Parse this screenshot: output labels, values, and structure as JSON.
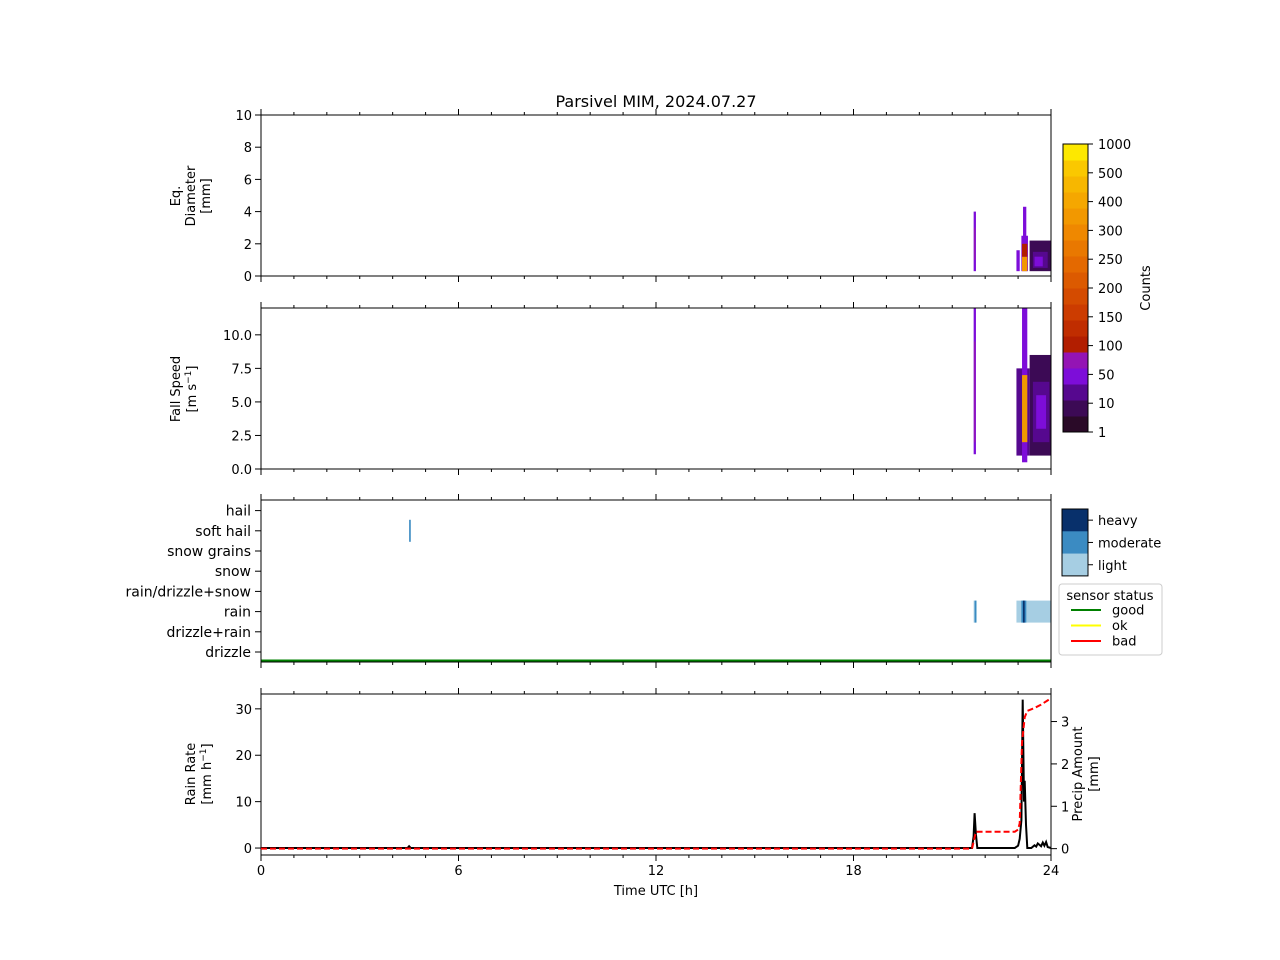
{
  "title": "Parsivel MIM, 2024.07.27",
  "colors": {
    "counts_scale": [
      "#2a0a28",
      "#3c0a55",
      "#56088f",
      "#7d0dd9",
      "#9414b4",
      "#b21e00",
      "#c02d00",
      "#cc3c00",
      "#d44b00",
      "#dc5a00",
      "#e46900",
      "#e97800",
      "#ef8800",
      "#f29800",
      "#f5a700",
      "#f7b700",
      "#fac800",
      "#fde800"
    ],
    "intensity": {
      "light": "#a6cee3",
      "moderate": "#3b8bc2",
      "heavy": "#08306b"
    },
    "status": {
      "good": "#008000",
      "ok": "#ffff00",
      "bad": "#ff0000"
    },
    "rain_rate_line": "#000000",
    "precip_line": "#ff0000"
  },
  "chart_data": [
    {
      "type": "heatmap",
      "panel": "diameter",
      "ylabel_lines": [
        "Eq.",
        "Diameter",
        "[mm]"
      ],
      "ylim": [
        0,
        10
      ],
      "yticks": [
        0,
        2,
        4,
        6,
        8,
        10
      ],
      "xlim": [
        0,
        24
      ],
      "xtick_labels": [
        "0",
        "6",
        "12",
        "18",
        "24"
      ],
      "cells": [
        {
          "t0": 21.65,
          "t1": 21.72,
          "v0": 0.3,
          "v1": 4.0,
          "level": 3
        },
        {
          "t0": 21.66,
          "t1": 21.7,
          "v0": 1.0,
          "v1": 3.0,
          "level": 4
        },
        {
          "t0": 22.95,
          "t1": 23.05,
          "v0": 0.3,
          "v1": 1.6,
          "level": 3
        },
        {
          "t0": 23.1,
          "t1": 23.3,
          "v0": 0.3,
          "v1": 2.5,
          "level": 3
        },
        {
          "t0": 23.15,
          "t1": 23.25,
          "v0": 0.4,
          "v1": 4.3,
          "level": 3
        },
        {
          "t0": 23.12,
          "t1": 23.28,
          "v0": 0.3,
          "v1": 1.2,
          "level": 13
        },
        {
          "t0": 23.12,
          "t1": 23.28,
          "v0": 1.2,
          "v1": 2.0,
          "level": 5
        },
        {
          "t0": 23.35,
          "t1": 24.0,
          "v0": 0.3,
          "v1": 2.2,
          "level": 1
        },
        {
          "t0": 23.45,
          "t1": 23.9,
          "v0": 0.5,
          "v1": 1.5,
          "level": 2
        },
        {
          "t0": 23.5,
          "t1": 23.75,
          "v0": 0.6,
          "v1": 1.2,
          "level": 3
        }
      ]
    },
    {
      "type": "heatmap",
      "panel": "fall-speed",
      "ylabel_lines": [
        "Fall Speed",
        "[m s",
        "−1",
        "]"
      ],
      "ylim": [
        0,
        12
      ],
      "yticks": [
        0.0,
        2.5,
        5.0,
        7.5,
        10.0
      ],
      "ytick_labels": [
        "0.0",
        "2.5",
        "5.0",
        "7.5",
        "10.0"
      ],
      "xlim": [
        0,
        24
      ],
      "cells": [
        {
          "t0": 21.65,
          "t1": 21.72,
          "v0": 1.1,
          "v1": 12.0,
          "level": 3
        },
        {
          "t0": 21.66,
          "t1": 21.7,
          "v0": 2.0,
          "v1": 9.5,
          "level": 4
        },
        {
          "t0": 22.95,
          "t1": 23.35,
          "v0": 1.0,
          "v1": 7.5,
          "level": 2
        },
        {
          "t0": 23.12,
          "t1": 23.28,
          "v0": 0.5,
          "v1": 12.0,
          "level": 3
        },
        {
          "t0": 23.12,
          "t1": 23.28,
          "v0": 2.0,
          "v1": 7.0,
          "level": 13
        },
        {
          "t0": 23.35,
          "t1": 24.0,
          "v0": 1.0,
          "v1": 8.5,
          "level": 1
        },
        {
          "t0": 23.45,
          "t1": 23.95,
          "v0": 2.0,
          "v1": 6.5,
          "level": 2
        },
        {
          "t0": 23.55,
          "t1": 23.85,
          "v0": 3.0,
          "v1": 5.5,
          "level": 3
        }
      ]
    },
    {
      "type": "heatmap",
      "panel": "precip-type",
      "categories": [
        "drizzle",
        "drizzle+rain",
        "rain",
        "rain/drizzle+snow",
        "snow",
        "snow grains",
        "soft hail",
        "hail"
      ],
      "xlim": [
        0,
        24
      ],
      "events": [
        {
          "t0": 4.5,
          "t1": 4.55,
          "category": "soft hail",
          "intensity": "moderate"
        },
        {
          "t0": 21.65,
          "t1": 21.75,
          "category": "rain",
          "intensity": "light"
        },
        {
          "t0": 21.68,
          "t1": 21.72,
          "category": "rain",
          "intensity": "moderate"
        },
        {
          "t0": 22.95,
          "t1": 24.0,
          "category": "rain",
          "intensity": "light"
        },
        {
          "t0": 23.1,
          "t1": 23.25,
          "category": "rain",
          "intensity": "moderate"
        },
        {
          "t0": 23.15,
          "t1": 23.2,
          "category": "rain",
          "intensity": "heavy"
        }
      ],
      "status_series": [
        {
          "t0": 0,
          "t1": 24,
          "status": "good"
        }
      ]
    },
    {
      "type": "line",
      "panel": "rain-rate",
      "xlabel": "Time UTC [h]",
      "xlim": [
        0,
        24
      ],
      "xticks": [
        0,
        6,
        12,
        18,
        24
      ],
      "ylabel_left_lines": [
        "Rain Rate",
        "[mm h",
        "−1",
        "]"
      ],
      "ylabel_right_lines": [
        "Precip Amount",
        "[mm]"
      ],
      "ylim_left": [
        -1.5,
        33.2
      ],
      "yticks_left": [
        0,
        10,
        20,
        30
      ],
      "ylim_right": [
        -0.15,
        3.65
      ],
      "yticks_right": [
        0,
        1,
        2,
        3
      ],
      "series": [
        {
          "name": "rain rate",
          "axis": "left",
          "x": [
            0,
            4.45,
            4.5,
            4.55,
            21.6,
            21.65,
            21.68,
            21.72,
            21.76,
            22.9,
            23.0,
            23.05,
            23.1,
            23.14,
            23.18,
            23.2,
            23.24,
            23.28,
            23.4,
            23.5,
            23.55,
            23.6,
            23.7,
            23.75,
            23.8,
            23.85,
            23.9,
            24.0
          ],
          "y": [
            0,
            0,
            0.4,
            0,
            0,
            2.5,
            7.5,
            3.0,
            0,
            0,
            0.5,
            2.0,
            6.0,
            32.0,
            10.0,
            14.5,
            5.0,
            0,
            0,
            0.6,
            0.3,
            1.0,
            0.4,
            1.2,
            0.5,
            1.3,
            0.2,
            0
          ]
        },
        {
          "name": "precip amount",
          "axis": "right",
          "dash": true,
          "x": [
            0,
            21.6,
            21.72,
            22.9,
            23.0,
            23.05,
            23.12,
            23.2,
            23.28,
            23.5,
            23.7,
            23.9,
            24.0
          ],
          "y": [
            0,
            0,
            0.4,
            0.4,
            0.45,
            0.6,
            2.5,
            3.1,
            3.25,
            3.32,
            3.4,
            3.5,
            3.55
          ]
        }
      ]
    }
  ],
  "colorbar_counts": {
    "label": "Counts",
    "tick_labels": [
      "1",
      "10",
      "50",
      "100",
      "150",
      "200",
      "250",
      "300",
      "400",
      "500",
      "1000"
    ]
  },
  "intensity_legend": {
    "labels": [
      "heavy",
      "moderate",
      "light"
    ]
  },
  "status_legend": {
    "title": "sensor status",
    "labels": [
      "good",
      "ok",
      "bad"
    ]
  }
}
